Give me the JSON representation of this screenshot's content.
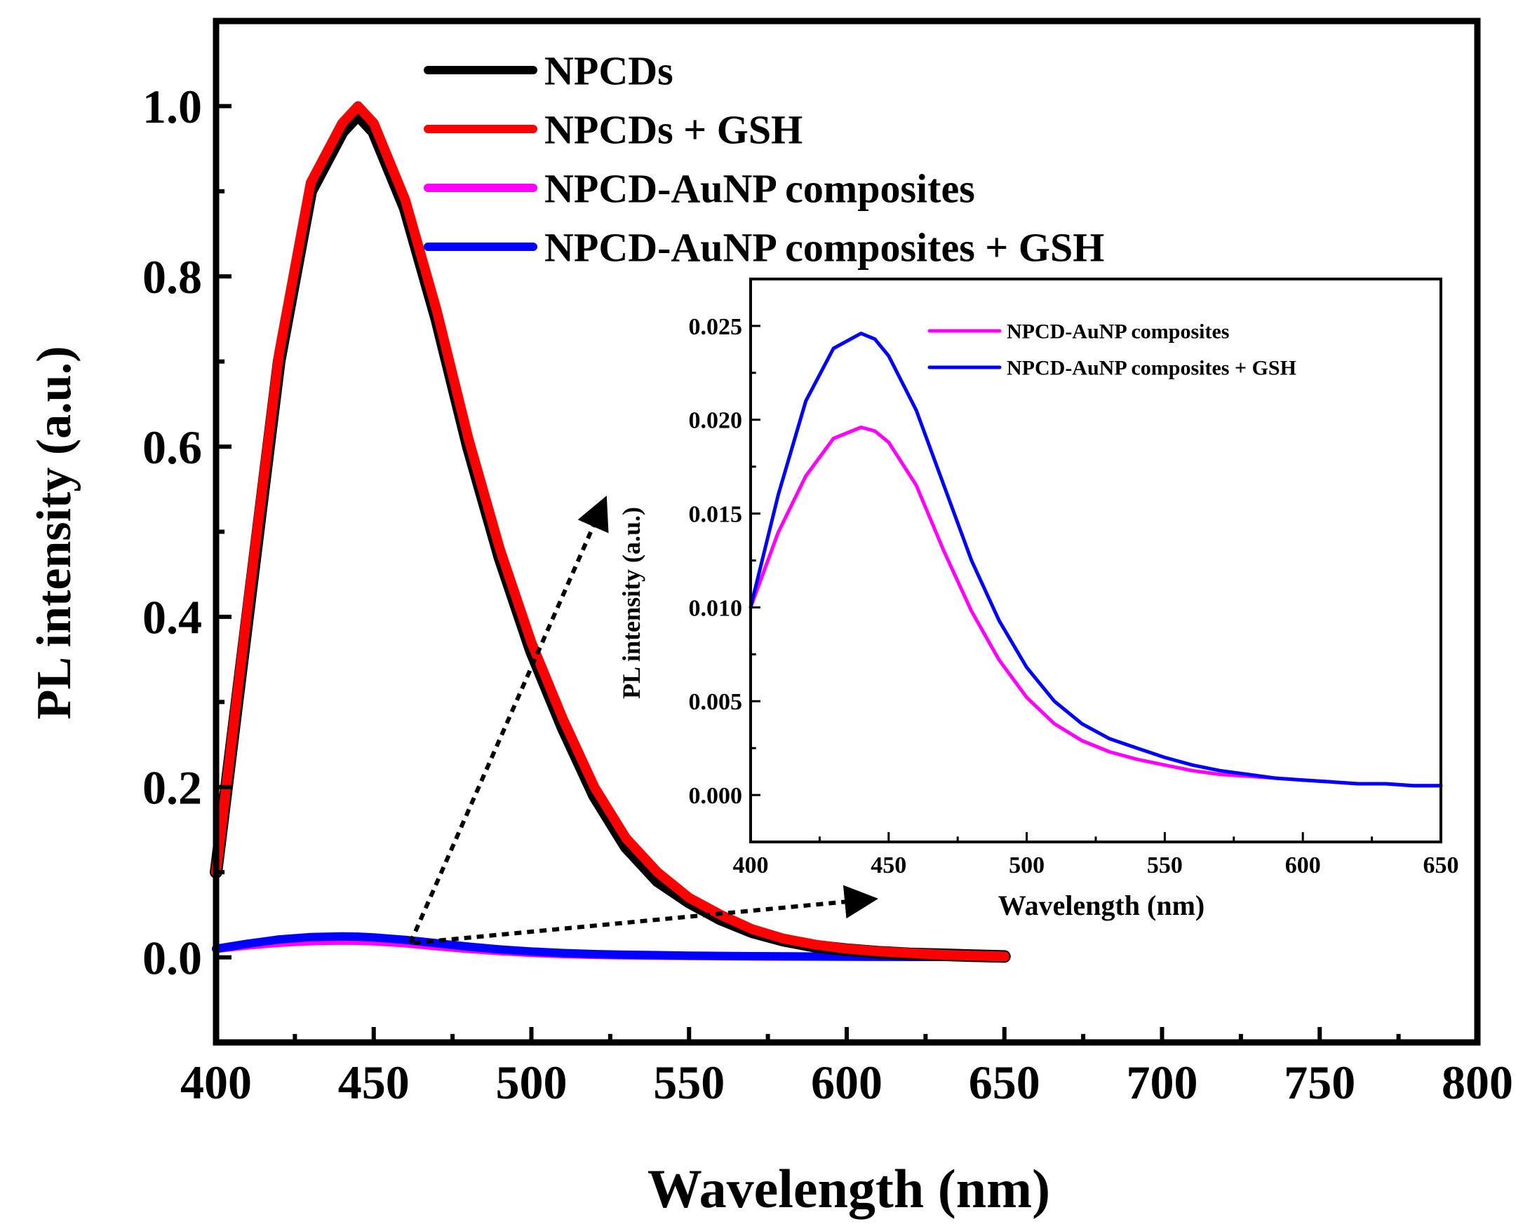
{
  "chart_data": [
    {
      "id": "main",
      "type": "line",
      "title": "",
      "xlabel": "Wavelength (nm)",
      "ylabel": "PL intensity (a.u.)",
      "xlim": [
        400,
        800
      ],
      "ylim": [
        -0.1,
        1.1
      ],
      "xticks": [
        400,
        450,
        500,
        550,
        600,
        650,
        700,
        750,
        800
      ],
      "xtick_labels": [
        "400",
        "450",
        "500",
        "550",
        "600",
        "650",
        "700",
        "750",
        "800"
      ],
      "yticks": [
        0.0,
        0.2,
        0.4,
        0.6,
        0.8,
        1.0
      ],
      "ytick_labels": [
        "0.0",
        "0.2",
        "0.4",
        "0.6",
        "0.8",
        "1.0"
      ],
      "grid": false,
      "legend_position": "top-center",
      "x": [
        400,
        410,
        420,
        430,
        440,
        445,
        450,
        460,
        470,
        480,
        490,
        500,
        510,
        520,
        530,
        540,
        550,
        560,
        570,
        580,
        590,
        600,
        610,
        620,
        630,
        640,
        650
      ],
      "series": [
        {
          "name": "NPCDs",
          "color": "#000000",
          "values": [
            0.1,
            0.4,
            0.7,
            0.9,
            0.97,
            0.99,
            0.97,
            0.88,
            0.75,
            0.6,
            0.47,
            0.36,
            0.27,
            0.19,
            0.13,
            0.09,
            0.065,
            0.045,
            0.03,
            0.02,
            0.013,
            0.009,
            0.006,
            0.004,
            0.003,
            0.002,
            0.001
          ]
        },
        {
          "name": "NPCDs + GSH",
          "color": "#ff0000",
          "values": [
            0.1,
            0.41,
            0.71,
            0.91,
            0.98,
            1.0,
            0.98,
            0.89,
            0.76,
            0.61,
            0.48,
            0.37,
            0.28,
            0.2,
            0.14,
            0.1,
            0.07,
            0.05,
            0.033,
            0.022,
            0.015,
            0.01,
            0.007,
            0.005,
            0.003,
            0.002,
            0.001
          ]
        },
        {
          "name": "NPCD-AuNP composites",
          "color": "#ff00ff",
          "values": [
            0.01,
            0.014,
            0.017,
            0.019,
            0.0196,
            0.0194,
            0.0188,
            0.0165,
            0.013,
            0.0098,
            0.0072,
            0.0052,
            0.0038,
            0.0029,
            0.0023,
            0.0019,
            0.0016,
            0.0013,
            0.0011,
            0.001,
            0.0009,
            0.0008,
            0.0007,
            0.0006,
            0.0006,
            0.0005,
            0.0005
          ]
        },
        {
          "name": "NPCD-AuNP composites + GSH",
          "color": "#0000ff",
          "values": [
            0.01,
            0.016,
            0.021,
            0.0238,
            0.0246,
            0.0243,
            0.0234,
            0.0205,
            0.0165,
            0.0125,
            0.0093,
            0.0068,
            0.005,
            0.0038,
            0.003,
            0.0025,
            0.002,
            0.0016,
            0.0013,
            0.0011,
            0.0009,
            0.0008,
            0.0007,
            0.0006,
            0.0006,
            0.0005,
            0.0005
          ]
        }
      ]
    },
    {
      "id": "inset",
      "type": "line",
      "title": "",
      "xlabel": "Wavelength (nm)",
      "ylabel": "PL intensity (a.u.)",
      "xlim": [
        400,
        650
      ],
      "ylim": [
        -0.0025,
        0.0275
      ],
      "xticks": [
        400,
        450,
        500,
        550,
        600,
        650
      ],
      "xtick_labels": [
        "400",
        "450",
        "500",
        "550",
        "600",
        "650"
      ],
      "yticks": [
        0.0,
        0.005,
        0.01,
        0.015,
        0.02,
        0.025
      ],
      "ytick_labels": [
        "0.000",
        "0.005",
        "0.010",
        "0.015",
        "0.020",
        "0.025"
      ],
      "grid": false,
      "legend_position": "top-right",
      "x": [
        400,
        410,
        420,
        430,
        440,
        445,
        450,
        460,
        470,
        480,
        490,
        500,
        510,
        520,
        530,
        540,
        550,
        560,
        570,
        580,
        590,
        600,
        610,
        620,
        630,
        640,
        650
      ],
      "series": [
        {
          "name": "NPCD-AuNP composites",
          "color": "#ff00ff",
          "values": [
            0.01,
            0.014,
            0.017,
            0.019,
            0.0196,
            0.0194,
            0.0188,
            0.0165,
            0.013,
            0.0098,
            0.0072,
            0.0052,
            0.0038,
            0.0029,
            0.0023,
            0.0019,
            0.0016,
            0.0013,
            0.0011,
            0.001,
            0.0009,
            0.0008,
            0.0007,
            0.0006,
            0.0006,
            0.0005,
            0.0005
          ]
        },
        {
          "name": "NPCD-AuNP composites + GSH",
          "color": "#0000ff",
          "values": [
            0.01,
            0.016,
            0.021,
            0.0238,
            0.0246,
            0.0243,
            0.0234,
            0.0205,
            0.0165,
            0.0125,
            0.0093,
            0.0068,
            0.005,
            0.0038,
            0.003,
            0.0025,
            0.002,
            0.0016,
            0.0013,
            0.0011,
            0.0009,
            0.0008,
            0.0007,
            0.0006,
            0.0006,
            0.0005,
            0.0005
          ]
        }
      ]
    }
  ]
}
